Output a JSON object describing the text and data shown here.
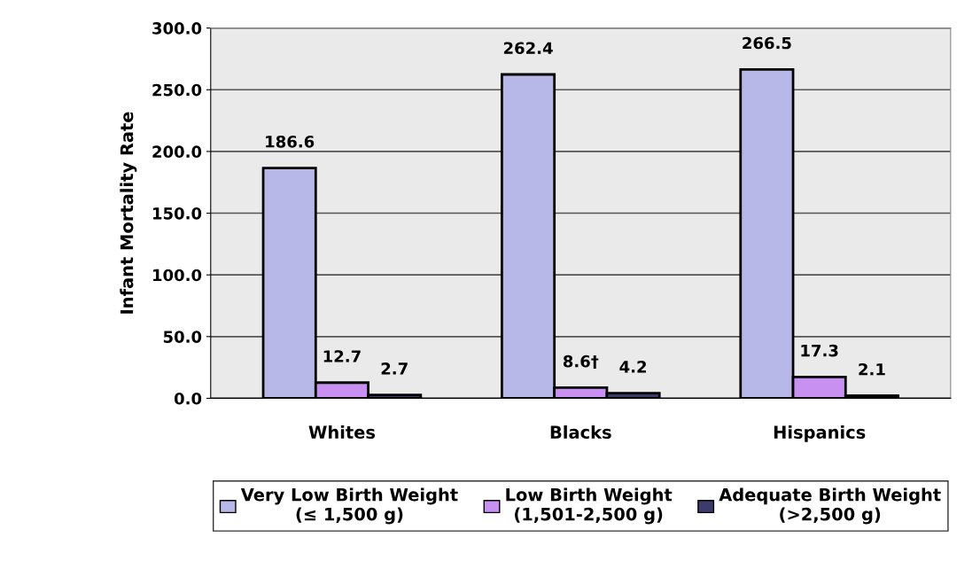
{
  "chart_data": {
    "type": "bar",
    "ylabel": "Infant Mortality Rate",
    "categories": [
      "Whites",
      "Blacks",
      "Hispanics"
    ],
    "series": [
      {
        "name": "Very Low Birth Weight\n(≤ 1,500 g)",
        "color": "#b8b8e8",
        "values": [
          186.6,
          262.4,
          266.5
        ],
        "value_labels": [
          "186.6",
          "262.4",
          "266.5"
        ]
      },
      {
        "name": "Low Birth Weight\n(1,501-2,500 g)",
        "color": "#c890f0",
        "values": [
          12.7,
          8.6,
          17.3
        ],
        "value_labels": [
          "12.7",
          "8.6†",
          "17.3"
        ]
      },
      {
        "name": "Adequate Birth Weight\n(>2,500 g)",
        "color": "#3c3c6c",
        "values": [
          2.7,
          4.2,
          2.1
        ],
        "value_labels": [
          "2.7",
          "4.2",
          "2.1"
        ]
      }
    ],
    "ylim": [
      0,
      300
    ],
    "yticks": [
      {
        "value": 0,
        "label": "0.0"
      },
      {
        "value": 50,
        "label": "50.0"
      },
      {
        "value": 100,
        "label": "100.0"
      },
      {
        "value": 150,
        "label": "150.0"
      },
      {
        "value": 200,
        "label": "200.0"
      },
      {
        "value": 250,
        "label": "250.0"
      },
      {
        "value": 300,
        "label": "300.0"
      }
    ],
    "grid": "y",
    "legend": "bottom"
  }
}
